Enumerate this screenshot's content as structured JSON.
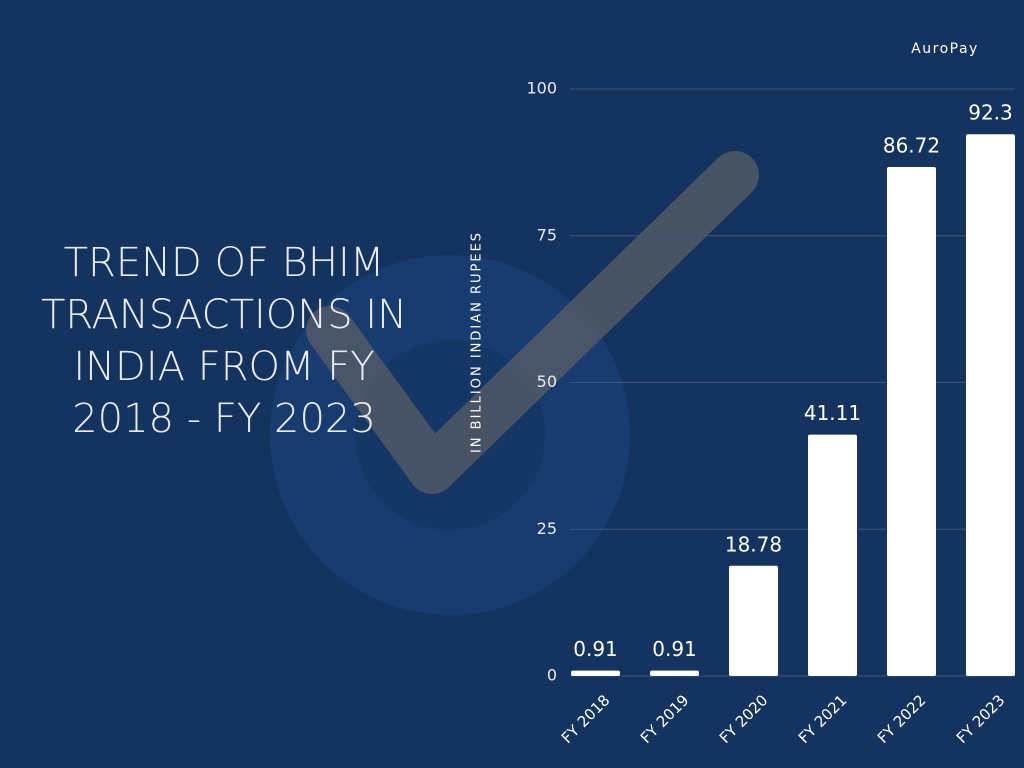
{
  "chart_data": {
    "type": "bar",
    "title_lines": [
      "TREND OF BHIM",
      "TRANSACTIONS  IN",
      "INDIA FROM FY",
      "2018 - FY 2023"
    ],
    "brand": "AuroPay",
    "y_label": "IN BILLION INDIAN RUPEES",
    "categories": [
      "FY 2018",
      "FY 2019",
      "FY 2020",
      "FY 2021",
      "FY 2022",
      "FY 2023"
    ],
    "values": [
      0.91,
      0.91,
      18.78,
      41.11,
      86.72,
      92.3
    ],
    "color": "#ffffff",
    "ylim": [
      0,
      100
    ],
    "yticks": [
      0,
      25,
      50,
      75,
      100
    ],
    "grid": true
  }
}
